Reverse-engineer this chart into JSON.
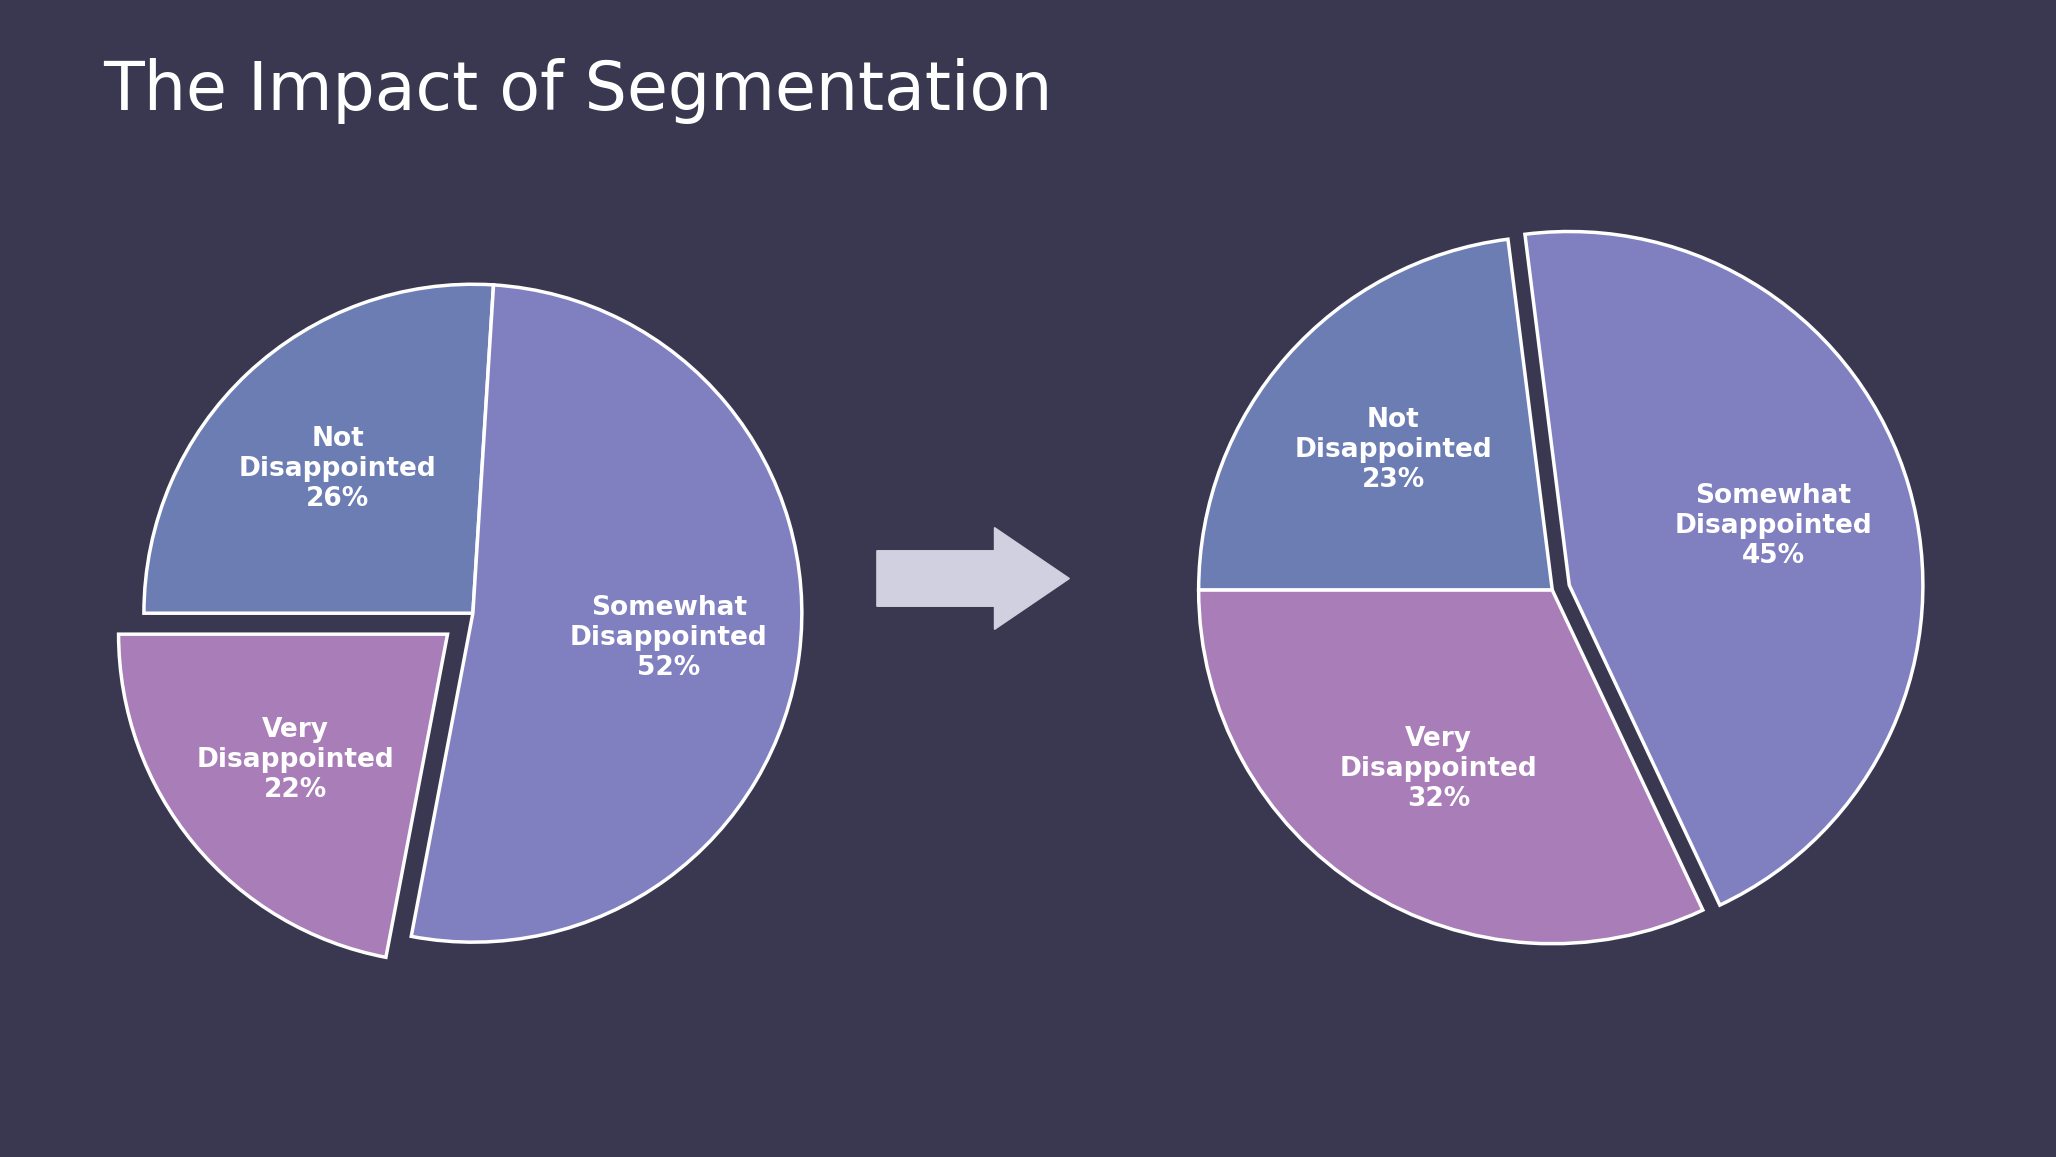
{
  "title": "The Impact of Segmentation",
  "title_fontsize": 48,
  "title_color": "#ffffff",
  "background_color": "#3a3750",
  "pie1": {
    "labels": [
      "Not\nDisappointed\n26%",
      "Somewhat\nDisappointed\n52%",
      "Very\nDisappointed\n22%"
    ],
    "values": [
      26,
      52,
      22
    ],
    "colors": [
      "#6b7db3",
      "#8080c0",
      "#a87db8"
    ],
    "explode": [
      0.0,
      0.0,
      0.1
    ],
    "startangle": 180,
    "wedge_edge_color": "#ffffff",
    "wedge_edge_width": 2.5
  },
  "pie2": {
    "labels": [
      "Not\nDisappointed\n23%",
      "Somewhat\nDisappointed\n45%",
      "Very\nDisappointed\n32%"
    ],
    "values": [
      23,
      45,
      32
    ],
    "colors": [
      "#6b7db3",
      "#8080c0",
      "#a87db8"
    ],
    "explode": [
      0.0,
      0.05,
      0.0
    ],
    "startangle": 180,
    "wedge_edge_color": "#ffffff",
    "wedge_edge_width": 2.5
  },
  "arrow_color": "#d0d0e0",
  "label_fontsize": 19,
  "label_fontweight": "bold",
  "label_color": "#ffffff"
}
